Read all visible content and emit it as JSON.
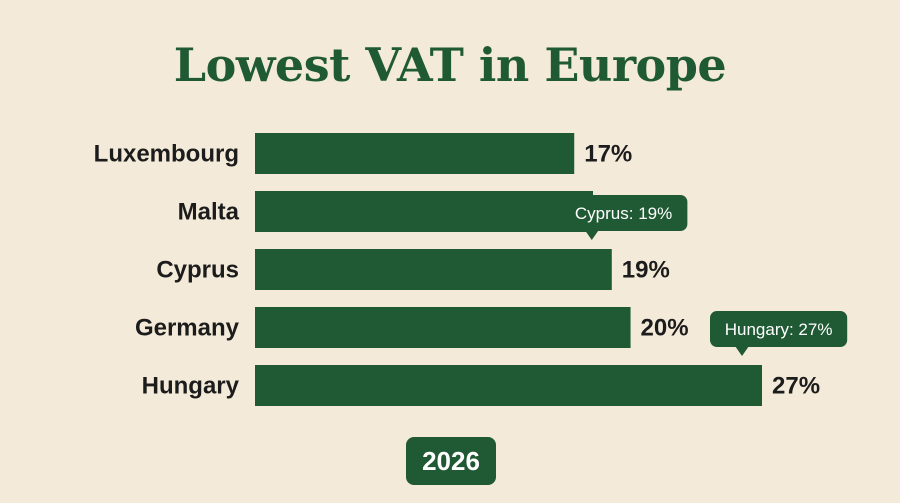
{
  "chart_data": {
    "type": "bar",
    "orientation": "horizontal",
    "title": "Lowest VAT in Europe",
    "categories": [
      "Luxembourg",
      "Malta",
      "Cyprus",
      "Germany",
      "Hungary"
    ],
    "values": [
      17,
      18,
      19,
      20,
      27
    ],
    "value_suffix": "%",
    "value_labels": [
      "17%",
      "18%",
      "19%",
      "20%",
      "27%"
    ],
    "annotations": [
      {
        "text": "Cyprus: 19%",
        "category": "Cyprus"
      },
      {
        "text": "Hungary: 27%",
        "category": "Hungary"
      }
    ],
    "footer_badge": "2026",
    "grid": false,
    "legend": "none",
    "colors": {
      "bar": "#1f5a34",
      "background": "#f3ead9",
      "title": "#1f5a34"
    }
  }
}
